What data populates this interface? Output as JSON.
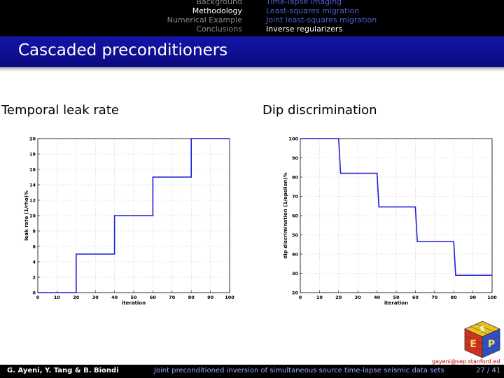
{
  "nav": {
    "sections": [
      "Background",
      "Methodology",
      "Numerical Example",
      "Conclusions"
    ],
    "active_section": 1,
    "subsections": [
      "Time-lapse imaging",
      "Least-squares migration",
      "Joint least-squares migration",
      "Inverse regularizers"
    ],
    "active_subsection": 3
  },
  "slide": {
    "title": "Cascaded preconditioners"
  },
  "chart_data": [
    {
      "type": "line",
      "panel_title": "Temporal leak rate",
      "xlabel": "iteration",
      "ylabel": "leak rate (1/rho)%",
      "xlim": [
        0,
        100
      ],
      "ylim": [
        0,
        20
      ],
      "xticks": [
        0,
        10,
        20,
        30,
        40,
        50,
        60,
        70,
        80,
        90,
        100
      ],
      "yticks": [
        0,
        2,
        4,
        6,
        8,
        10,
        12,
        14,
        16,
        18,
        20
      ],
      "grid": true,
      "series": [
        {
          "name": "leak rate",
          "color": "#1f1fd6",
          "x": [
            0,
            20,
            20,
            40,
            40,
            60,
            60,
            80,
            80,
            100
          ],
          "y": [
            0,
            0,
            5,
            5,
            10,
            10,
            15,
            15,
            20,
            20
          ]
        }
      ]
    },
    {
      "type": "line",
      "panel_title": "Dip discrimination",
      "xlabel": "iteration",
      "ylabel": "dip discrimination (1/epsilon)%",
      "xlim": [
        0,
        100
      ],
      "ylim": [
        20,
        100
      ],
      "xticks": [
        0,
        10,
        20,
        30,
        40,
        50,
        60,
        70,
        80,
        90,
        100
      ],
      "yticks": [
        20,
        30,
        40,
        50,
        60,
        70,
        80,
        90,
        100
      ],
      "grid": true,
      "series": [
        {
          "name": "dip discrimination",
          "color": "#1f1fd6",
          "x": [
            0,
            20,
            21,
            40,
            41,
            60,
            61,
            80,
            81,
            100
          ],
          "y": [
            100,
            100,
            82,
            82,
            64.5,
            64.5,
            46.5,
            46.5,
            29,
            29
          ]
        }
      ]
    }
  ],
  "footer": {
    "authors": "G. Ayeni, Y. Tang & B. Biondi",
    "talk_title": "Joint preconditioned inversion of simultaneous source time-lapse seismic data sets",
    "page": "27 / 41"
  },
  "email": "gayeni@sep.stanford.ed",
  "logo": {
    "name": "SEP cube logo",
    "letters": [
      "S",
      "E",
      "P"
    ]
  }
}
